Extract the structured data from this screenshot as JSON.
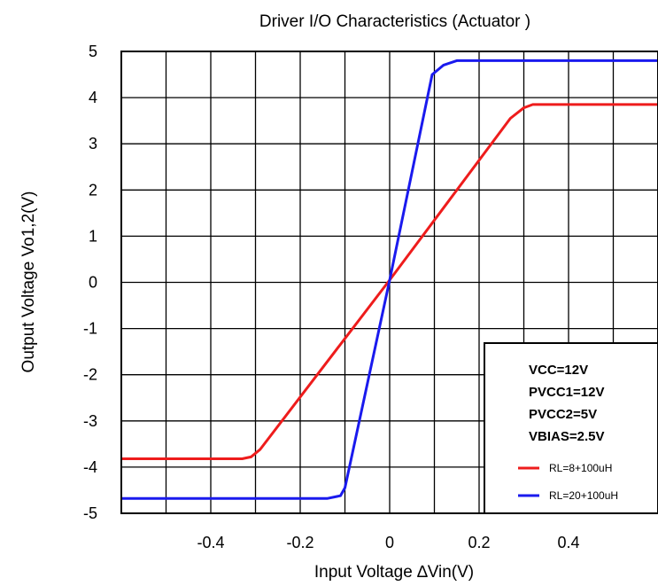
{
  "chart_data": {
    "type": "line",
    "title": "Driver I/O Characteristics (Actuator )",
    "xlabel": "Input Voltage ∆Vin(V)",
    "ylabel": "Output Voltage Vo1,2(V)",
    "xlim": [
      -0.6,
      0.6
    ],
    "ylim": [
      -5,
      5
    ],
    "x_ticks": [
      -0.4,
      -0.2,
      0,
      0.2,
      0.4
    ],
    "x_tick_labels": [
      "-0.4",
      "-0.2",
      "0",
      "0.2",
      "0.4"
    ],
    "y_ticks": [
      5,
      4,
      3,
      2,
      1,
      0,
      -1,
      -2,
      -3,
      -4,
      -5
    ],
    "y_tick_labels": [
      "5",
      "4",
      "3",
      "2",
      "1",
      "0",
      "-1",
      "-2",
      "-3",
      "-4",
      "-5"
    ],
    "grid": true,
    "annotations": [
      "VCC=12V",
      "PVCC1=12V",
      "PVCC2=5V",
      "VBIAS=2.5V"
    ],
    "legend_position": "bottom-right",
    "series": [
      {
        "name": "RL=8+100uH",
        "color": "#ee1c1c",
        "points": [
          [
            -0.6,
            -3.82
          ],
          [
            -0.33,
            -3.82
          ],
          [
            -0.31,
            -3.78
          ],
          [
            -0.29,
            -3.62
          ],
          [
            0.0,
            0.05
          ],
          [
            0.27,
            3.55
          ],
          [
            0.3,
            3.78
          ],
          [
            0.32,
            3.85
          ],
          [
            0.6,
            3.85
          ]
        ]
      },
      {
        "name": "RL=20+100uH",
        "color": "#1a1aee",
        "points": [
          [
            -0.6,
            -4.68
          ],
          [
            -0.14,
            -4.68
          ],
          [
            -0.11,
            -4.62
          ],
          [
            -0.1,
            -4.45
          ],
          [
            0.0,
            0.05
          ],
          [
            0.095,
            4.5
          ],
          [
            0.12,
            4.7
          ],
          [
            0.15,
            4.8
          ],
          [
            0.6,
            4.8
          ]
        ]
      }
    ]
  }
}
